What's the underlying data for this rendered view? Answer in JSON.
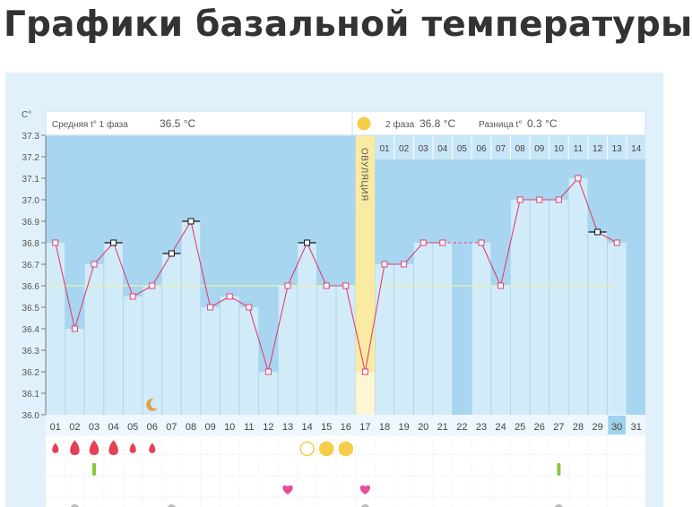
{
  "page": {
    "title": "Графики базальной температуры"
  },
  "colors": {
    "frame": "#e1f1fb",
    "plot_bg": "#a8d6f0",
    "bar": "#d2ebf9",
    "line": "#df3f73",
    "ovulation": "#fbeaa2",
    "ovulation_line": "#ffe778",
    "drop": "#e44155",
    "sun": "#f5cd49",
    "moon": "#e0a14a",
    "green": "#8cc63f",
    "heart": "#ea4c97",
    "today": "#9fd2ec"
  },
  "header": {
    "phase1_label": "Средняя t° 1 фаза",
    "phase1_value": "36.5 °C",
    "phase2_label": "2 фаза",
    "phase2_value": "36.8 °C",
    "diff_label": "Разница t°",
    "diff_value": "0.3 °C"
  },
  "chart_data": {
    "type": "line",
    "y_unit_label": "C°",
    "ylim": [
      36.0,
      37.3
    ],
    "y_ticks": [
      "36.0",
      "36.1",
      "36.2",
      "36.3",
      "36.4",
      "36.5",
      "36.6",
      "36.7",
      "36.8",
      "36.9",
      "37.0",
      "37.1",
      "37.2",
      "37.3"
    ],
    "x_labels": [
      "01",
      "02",
      "03",
      "04",
      "05",
      "06",
      "07",
      "08",
      "09",
      "10",
      "11",
      "12",
      "13",
      "14",
      "15",
      "16",
      "17",
      "18",
      "19",
      "20",
      "21",
      "22",
      "23",
      "24",
      "25",
      "26",
      "27",
      "28",
      "29",
      "30",
      "31"
    ],
    "temperatures": [
      36.8,
      36.4,
      36.7,
      36.8,
      36.55,
      36.6,
      36.75,
      36.9,
      36.5,
      36.55,
      36.5,
      36.2,
      36.6,
      36.8,
      36.6,
      36.6,
      36.2,
      36.7,
      36.7,
      36.8,
      36.8,
      null,
      36.8,
      36.6,
      37.0,
      37.0,
      37.0,
      37.1,
      36.85,
      36.8,
      null
    ],
    "marker_types": [
      "sq",
      "sq",
      "sq",
      "dash",
      "sq",
      "sq",
      "dash",
      "dash",
      "sq",
      "sq",
      "sq",
      "sq",
      "sq",
      "dash",
      "sq",
      "sq",
      "sq",
      "sq",
      "sq",
      "sq",
      "sq",
      null,
      "sq",
      "sq",
      "sq",
      "sq",
      "sq",
      "sq",
      "dash",
      "sq",
      null
    ],
    "missing_days": [
      "22"
    ],
    "dashed_gap": [
      "21",
      "23"
    ],
    "average_line": 36.6,
    "ovulation_day": "17",
    "ovulation_label": "ОВУЛЯЦИЯ",
    "phase2_days": [
      "01",
      "02",
      "03",
      "04",
      "05",
      "06",
      "07",
      "08",
      "09",
      "10",
      "11",
      "12",
      "13",
      "14"
    ],
    "today": "30",
    "icons": {
      "drops": [
        {
          "day": "01",
          "size": "small"
        },
        {
          "day": "02",
          "size": "large"
        },
        {
          "day": "03",
          "size": "large"
        },
        {
          "day": "04",
          "size": "large"
        },
        {
          "day": "05",
          "size": "small"
        },
        {
          "day": "06",
          "size": "small"
        }
      ],
      "moon_day": "06",
      "circles": [
        {
          "day": "14",
          "filled": false
        },
        {
          "day": "15",
          "filled": true
        },
        {
          "day": "16",
          "filled": true
        }
      ],
      "green_marks": [
        "03",
        "27"
      ],
      "hearts": [
        "13",
        "17"
      ],
      "gray_dots": [
        "02",
        "07",
        "17",
        "27"
      ]
    }
  }
}
